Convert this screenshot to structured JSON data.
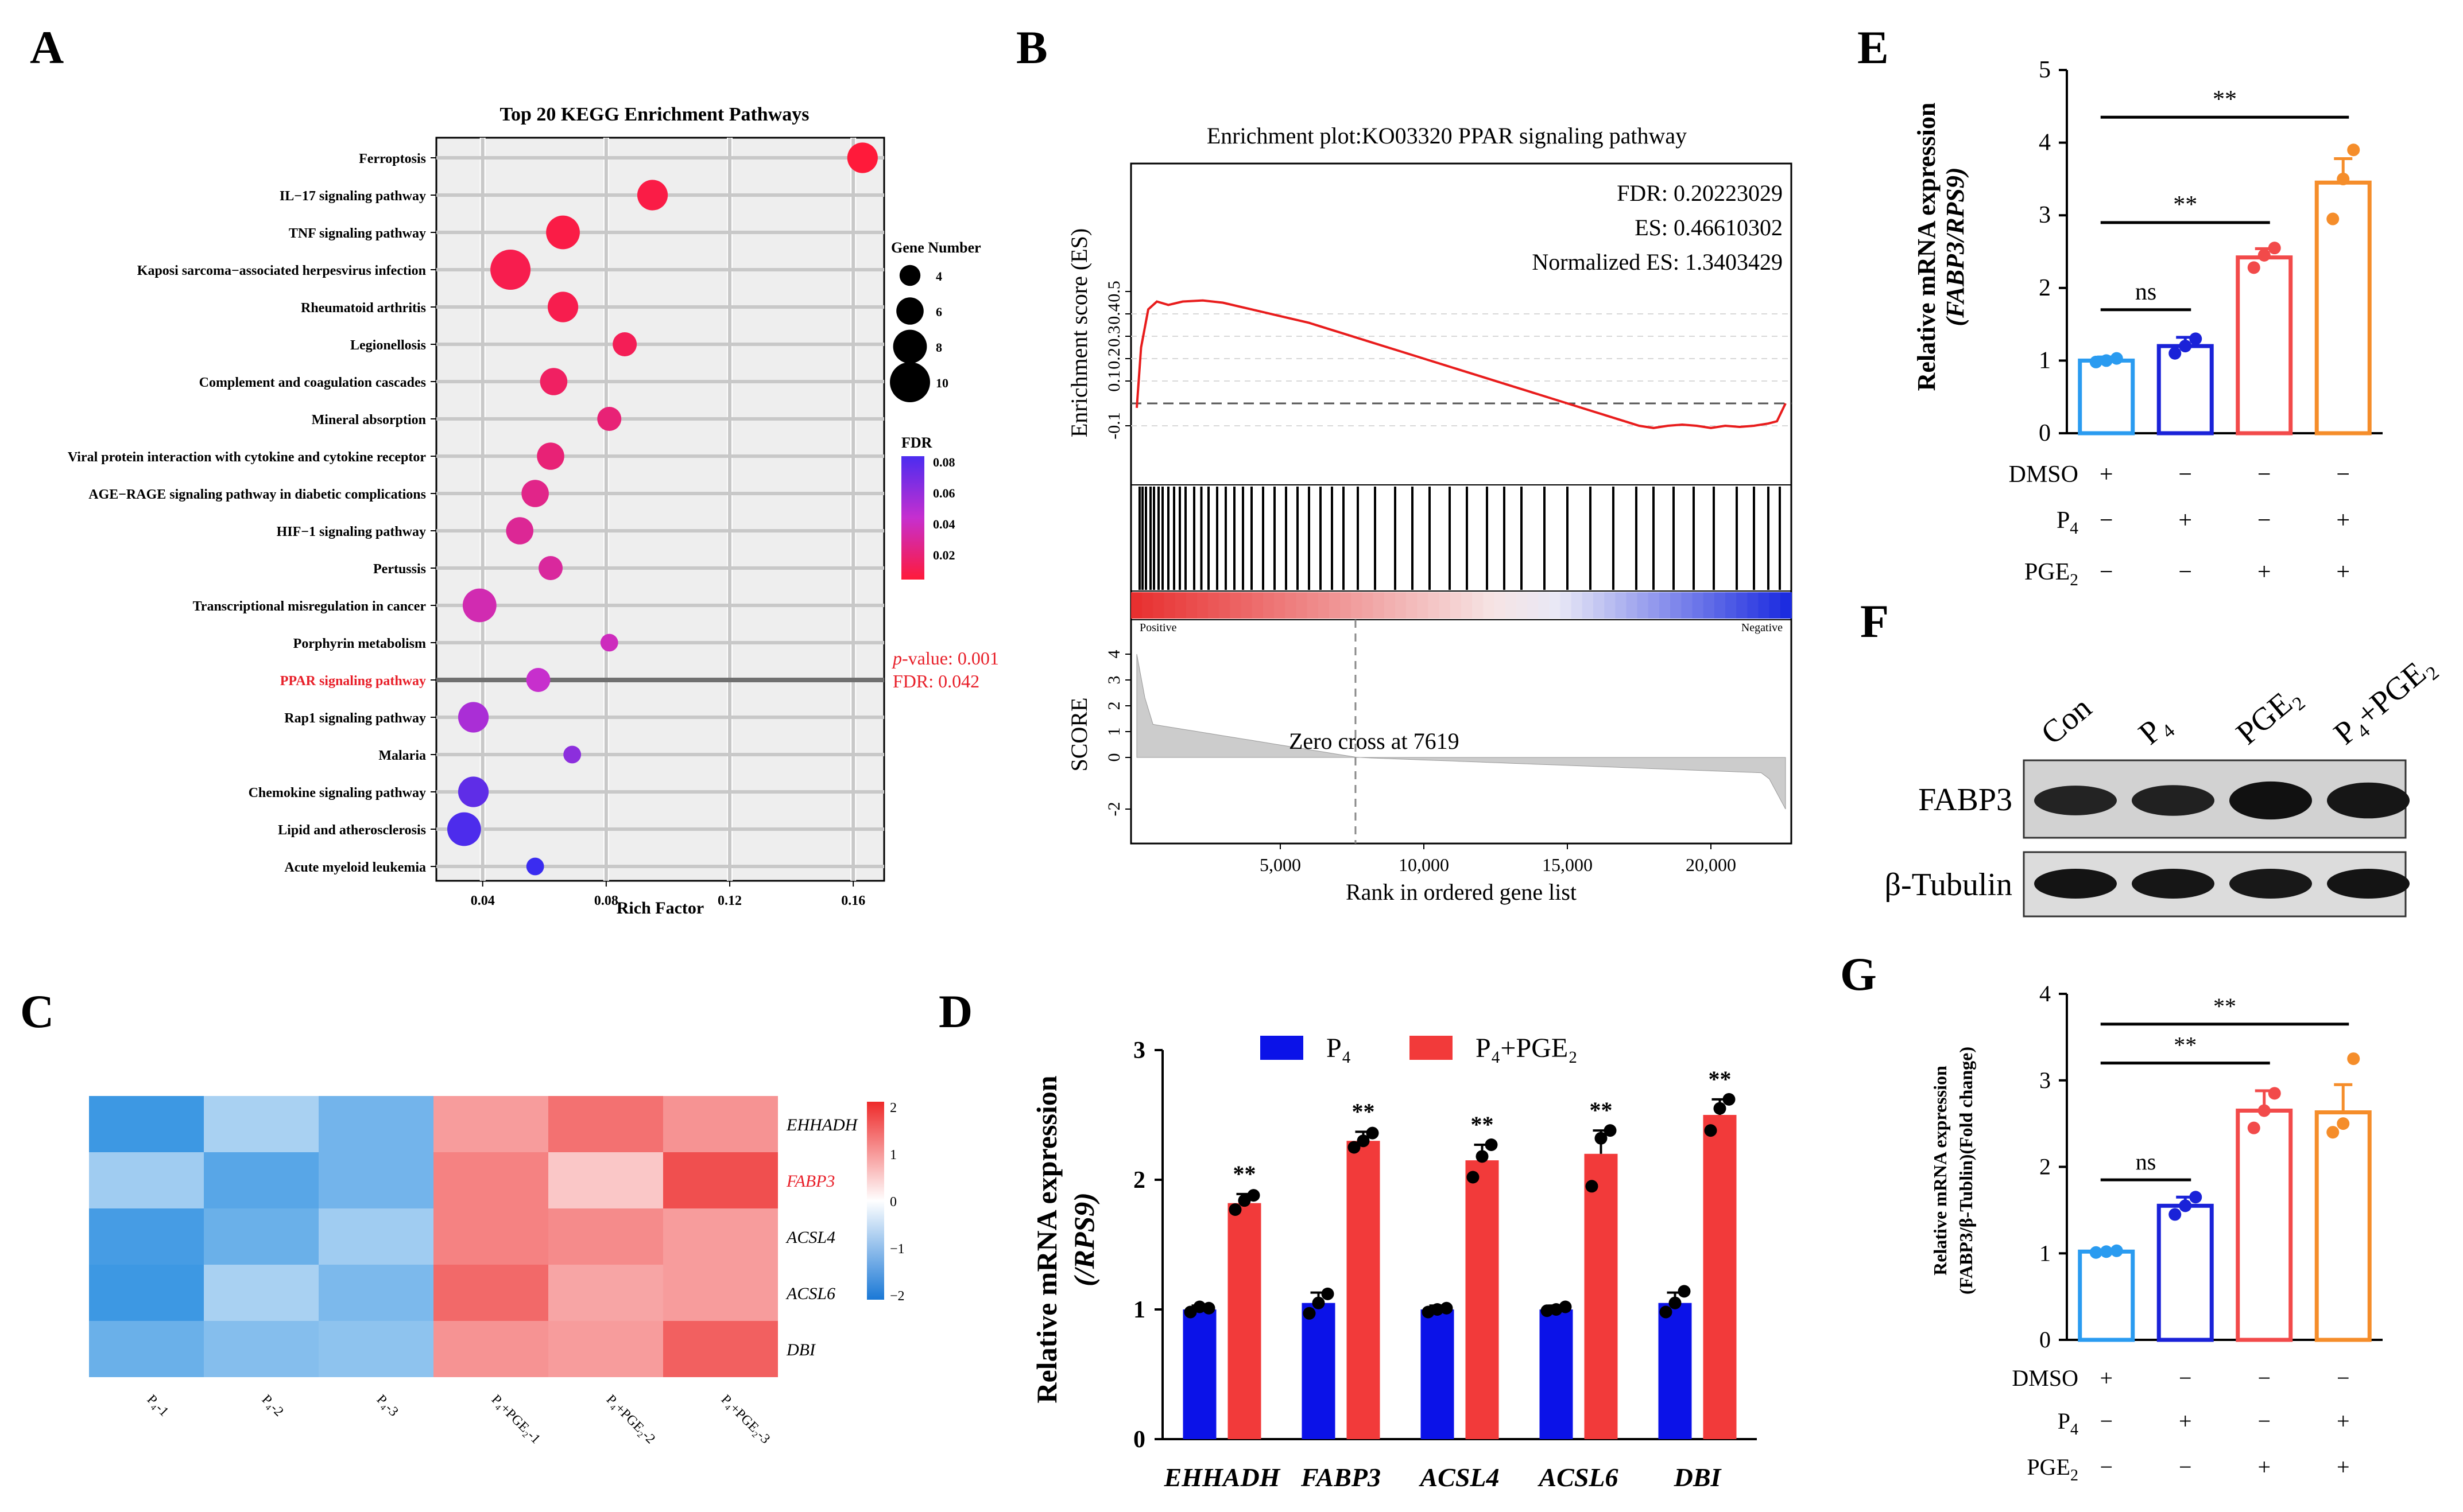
{
  "panel_labels": [
    "A",
    "B",
    "C",
    "D",
    "E",
    "F",
    "G"
  ],
  "chart_data": [
    {
      "panel": "A",
      "type": "scatter",
      "title": "Top 20 KEGG Enrichment Pathways",
      "xlabel": "Rich Factor",
      "xlim": [
        0.025,
        0.17
      ],
      "xticks": [
        0.04,
        0.08,
        0.12,
        0.16
      ],
      "pathways": [
        "Ferroptosis",
        "IL−17 signaling pathway",
        "TNF signaling pathway",
        "Kaposi sarcoma−associated herpesvirus infection",
        "Rheumatoid arthritis",
        "Legionellosis",
        "Complement and coagulation cascades",
        "Mineral absorption",
        "Viral protein interaction with cytokine and cytokine receptor",
        "AGE−RAGE signaling pathway in diabetic complications",
        "HIF−1 signaling pathway",
        "Pertussis",
        "Transcriptional misregulation in cancer",
        "Porphyrin metabolism",
        "PPAR signaling pathway",
        "Rap1 signaling pathway",
        "Malaria",
        "Chemokine signaling pathway",
        "Lipid and atherosclerosis",
        "Acute myeloid leukemia"
      ],
      "rich_factor": [
        0.163,
        0.095,
        0.066,
        0.049,
        0.066,
        0.086,
        0.063,
        0.081,
        0.062,
        0.057,
        0.052,
        0.062,
        0.039,
        0.081,
        0.058,
        0.037,
        0.069,
        0.037,
        0.034,
        0.057
      ],
      "gene_number": [
        7,
        7,
        8,
        10,
        7,
        5,
        6,
        5,
        6,
        6,
        6,
        5,
        8,
        3,
        5,
        7,
        3,
        7,
        8,
        3
      ],
      "fdr": [
        0.005,
        0.008,
        0.008,
        0.01,
        0.01,
        0.012,
        0.015,
        0.02,
        0.02,
        0.025,
        0.028,
        0.03,
        0.035,
        0.038,
        0.042,
        0.05,
        0.058,
        0.07,
        0.075,
        0.08
      ],
      "highlight_index": 14,
      "size_legend_title": "Gene Number",
      "size_legend": [
        4,
        6,
        8,
        10
      ],
      "color_legend_title": "FDR",
      "color_legend_ticks": [
        "0.08",
        "0.06",
        "0.04",
        "0.02"
      ],
      "annotation_p_label": "p",
      "annotation_p_rest": "-value:  0.001",
      "annotation_fdr": "FDR: 0.042"
    },
    {
      "panel": "B",
      "type": "line",
      "title": "Enrichment plot:KO03320 PPAR signaling pathway",
      "ylabel": "Enrichment score (ES)",
      "yticks": [
        0.5,
        0.4,
        0.3,
        0.2,
        0.1,
        -0.1
      ],
      "stats": [
        "FDR: 0.20223029",
        "ES: 0.46610302",
        "Normalized ES: 1.3403429"
      ],
      "es_x": [
        0,
        150,
        400,
        700,
        1100,
        1600,
        2300,
        3000,
        4000,
        5000,
        6000,
        7000,
        8000,
        9000,
        10000,
        11000,
        12000,
        13000,
        14000,
        15000,
        16000,
        17000,
        17500,
        18000,
        18500,
        19000,
        19500,
        20000,
        20500,
        21000,
        21500,
        22000,
        22300,
        22600
      ],
      "es_y": [
        -0.02,
        0.25,
        0.42,
        0.455,
        0.44,
        0.455,
        0.46,
        0.45,
        0.42,
        0.39,
        0.36,
        0.32,
        0.28,
        0.24,
        0.2,
        0.16,
        0.12,
        0.08,
        0.04,
        0.0,
        -0.04,
        -0.08,
        -0.1,
        -0.11,
        -0.1,
        -0.095,
        -0.1,
        -0.11,
        -0.1,
        -0.105,
        -0.1,
        -0.09,
        -0.08,
        0.0
      ],
      "hits_x": [
        100,
        200,
        320,
        480,
        600,
        760,
        900,
        1100,
        1300,
        1500,
        1700,
        2000,
        2250,
        2500,
        2800,
        3100,
        3400,
        3700,
        4000,
        4400,
        4800,
        5200,
        5600,
        6000,
        6400,
        6800,
        7200,
        7700,
        8300,
        9000,
        9600,
        10200,
        10900,
        11500,
        12200,
        12800,
        13400,
        14200,
        15000,
        15800,
        16600,
        17400,
        18000,
        18700,
        19400,
        20100,
        20900,
        21500,
        22000,
        22400
      ],
      "positive_label": "Positive",
      "negative_label": "Negative",
      "score_label": "SCORE",
      "score_yticks": [
        4,
        3,
        2,
        1,
        0,
        -2
      ],
      "zero_cross_label": "Zero cross at 7619",
      "zero_cross": 7619,
      "xlabel": "Rank in ordered gene list",
      "xticks": [
        5000,
        10000,
        15000,
        20000
      ],
      "xtick_labels": [
        "5,000",
        "10,000",
        "15,000",
        "20,000"
      ],
      "xlim": [
        0,
        22600
      ]
    },
    {
      "panel": "C",
      "type": "heatmap",
      "rows": [
        "EHHADH",
        "FABP3",
        "ACSL4",
        "ACSL6",
        "DBI"
      ],
      "highlight_row": "FABP3",
      "columns": [
        "P₄-1",
        "P₄-2",
        "P₄-3",
        "P₄+PGE₂-1",
        "P₄+PGE₂-2",
        "P₄+PGE₂-3"
      ],
      "values": [
        [
          -1.8,
          -0.6,
          -1.2,
          0.8,
          1.3,
          0.9
        ],
        [
          -0.7,
          -1.5,
          -1.2,
          1.1,
          0.3,
          1.7
        ],
        [
          -1.7,
          -1.3,
          -0.7,
          1.1,
          1.0,
          0.8
        ],
        [
          -1.8,
          -0.6,
          -1.1,
          1.4,
          0.7,
          0.8
        ],
        [
          -1.3,
          -1.0,
          -0.9,
          0.9,
          0.8,
          1.5
        ]
      ],
      "color_ticks": [
        "2",
        "1",
        "0",
        "−1",
        "−2"
      ],
      "vrange": [
        -2,
        2
      ]
    },
    {
      "panel": "D",
      "type": "bar",
      "ylabel": "Relative mRNA expression",
      "ylabel2": "(/RPS9)",
      "ylim": [
        0,
        3
      ],
      "yticks": [
        "0",
        "1",
        "2",
        "3"
      ],
      "categories": [
        "EHHADH",
        "FABP3",
        "ACSL4",
        "ACSL6",
        "DBI"
      ],
      "series": [
        {
          "name": "P₄",
          "color": "#0b12e8",
          "values": [
            1.0,
            1.05,
            1.0,
            1.0,
            1.05
          ],
          "errors": [
            0.03,
            0.08,
            0.03,
            0.03,
            0.08
          ],
          "points": [
            [
              0.98,
              1.02,
              1.01
            ],
            [
              0.97,
              1.05,
              1.12
            ],
            [
              0.98,
              1.0,
              1.01
            ],
            [
              0.99,
              1.0,
              1.02
            ],
            [
              0.98,
              1.05,
              1.14
            ]
          ]
        },
        {
          "name": "P₄+PGE₂",
          "color": "#f23a3a",
          "values": [
            1.82,
            2.3,
            2.15,
            2.2,
            2.5
          ],
          "errors": [
            0.07,
            0.07,
            0.12,
            0.18,
            0.12
          ],
          "points": [
            [
              1.77,
              1.84,
              1.88
            ],
            [
              2.25,
              2.3,
              2.36
            ],
            [
              2.02,
              2.18,
              2.27
            ],
            [
              1.95,
              2.32,
              2.38
            ],
            [
              2.38,
              2.55,
              2.62
            ]
          ]
        }
      ],
      "significance": [
        "**",
        "**",
        "**",
        "**",
        "**"
      ]
    },
    {
      "panel": "E",
      "type": "bar",
      "ylabel": "Relative mRNA expression",
      "ylabel2": "(FABP3/RPS9)",
      "ylim": [
        0,
        5
      ],
      "yticks": [
        "0",
        "1",
        "2",
        "3",
        "4",
        "5"
      ],
      "values": [
        1.0,
        1.2,
        2.42,
        3.45
      ],
      "errors": [
        0.05,
        0.12,
        0.12,
        0.33
      ],
      "colors": [
        "#2a9bf0",
        "#1a22d8",
        "#f24a4a",
        "#f58d2a"
      ],
      "points": [
        [
          0.98,
          1.0,
          1.03
        ],
        [
          1.1,
          1.2,
          1.3
        ],
        [
          2.28,
          2.45,
          2.55
        ],
        [
          2.95,
          3.5,
          3.9
        ]
      ],
      "row_labels": [
        "DMSO",
        "P",
        "PGE"
      ],
      "row_subscripts": [
        "",
        "4",
        "2"
      ],
      "treatment_table": [
        [
          "+",
          "−",
          "−",
          "−"
        ],
        [
          "−",
          "+",
          "−",
          "+"
        ],
        [
          "−",
          "−",
          "+",
          "+"
        ]
      ],
      "significance": [
        {
          "label": "ns",
          "from": 0,
          "to": 1,
          "y": 1.7
        },
        {
          "label": "**",
          "from": 0,
          "to": 2,
          "y": 2.9
        },
        {
          "label": "**",
          "from": 0,
          "to": 3,
          "y": 4.35
        }
      ]
    },
    {
      "panel": "F",
      "type": "blot",
      "lanes": [
        "Con",
        "P₄",
        "PGE₂",
        "P₄+PGE₂"
      ],
      "bands": [
        "FABP3",
        "β-Tubulin"
      ],
      "band_intensity": [
        [
          0.55,
          0.6,
          0.95,
          0.85
        ],
        [
          0.9,
          0.85,
          0.8,
          0.9
        ]
      ]
    },
    {
      "panel": "G",
      "type": "bar",
      "ylabel": "Relative mRNA expression",
      "ylabel2": "(FABP3/β-Tublin)(Fold change)",
      "ylim": [
        0,
        4
      ],
      "yticks": [
        "0",
        "1",
        "2",
        "3",
        "4"
      ],
      "values": [
        1.02,
        1.55,
        2.65,
        2.63
      ],
      "errors": [
        0.02,
        0.1,
        0.23,
        0.32
      ],
      "colors": [
        "#2a9bf0",
        "#1a22d8",
        "#f24a4a",
        "#f58d2a"
      ],
      "points": [
        [
          1.01,
          1.02,
          1.03
        ],
        [
          1.45,
          1.55,
          1.65
        ],
        [
          2.45,
          2.65,
          2.85
        ],
        [
          2.4,
          2.5,
          3.25
        ]
      ],
      "row_labels": [
        "DMSO",
        "P",
        "PGE"
      ],
      "row_subscripts": [
        "",
        "4",
        "2"
      ],
      "treatment_table": [
        [
          "+",
          "−",
          "−",
          "−"
        ],
        [
          "−",
          "+",
          "−",
          "+"
        ],
        [
          "−",
          "−",
          "+",
          "+"
        ]
      ],
      "significance": [
        {
          "label": "ns",
          "from": 0,
          "to": 1,
          "y": 1.85
        },
        {
          "label": "**",
          "from": 0,
          "to": 2,
          "y": 3.2
        },
        {
          "label": "**",
          "from": 0,
          "to": 3,
          "y": 3.65
        }
      ]
    }
  ]
}
